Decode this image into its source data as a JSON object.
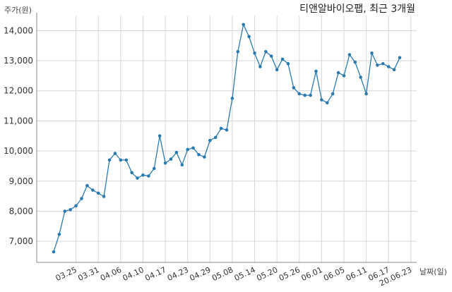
{
  "chart_data": {
    "type": "line",
    "title": "티앤알바이오팹, 최근 3개월",
    "ylabel": "주가(원)",
    "xlabel": "날짜(일)",
    "ylim": [
      6300,
      14500
    ],
    "yticks": [
      7000,
      8000,
      9000,
      10000,
      11000,
      12000,
      13000,
      14000
    ],
    "ytick_labels": [
      "7,000",
      "8,000",
      "9,000",
      "10,000",
      "11,000",
      "12,000",
      "13,000",
      "14,000"
    ],
    "xtick_labels": [
      "03.25",
      "03.31",
      "04.06",
      "04.10",
      "04.17",
      "04.23",
      "04.29",
      "05.08",
      "05.14",
      "05.20",
      "05.26",
      "06.01",
      "06.05",
      "06.11",
      "06.17",
      "20.06.23"
    ],
    "xtick_index": [
      4,
      8,
      12,
      16,
      20,
      24,
      28,
      32,
      36,
      40,
      44,
      48,
      52,
      56,
      60,
      64
    ],
    "grid": true,
    "line_color": "#2a7ab0",
    "series": [
      {
        "values": [
          6650,
          7230,
          8000,
          8050,
          8180,
          8420,
          8850,
          8700,
          8600,
          8490,
          9700,
          9920,
          9700,
          9700,
          9280,
          9100,
          9200,
          9170,
          9420,
          10500,
          9600,
          9730,
          9950,
          9540,
          10050,
          10100,
          9880,
          9800,
          10350,
          10450,
          10750,
          10700,
          11750,
          13300,
          14200,
          13800,
          13250,
          12800,
          13300,
          13150,
          12700,
          13050,
          12900,
          12100,
          11900,
          11850,
          11850,
          12650,
          11700,
          11600,
          11900,
          12600,
          12500,
          13200,
          12950,
          12450,
          11900,
          13250,
          12850,
          12900,
          12800,
          12700,
          13100
        ]
      }
    ]
  }
}
